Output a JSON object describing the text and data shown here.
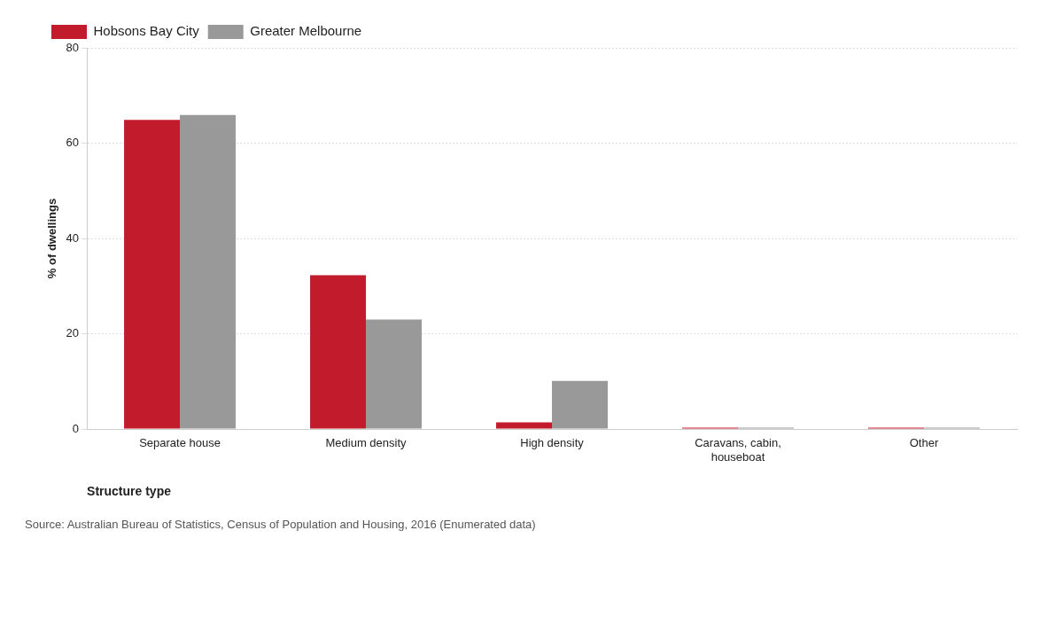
{
  "chart_data": {
    "type": "bar",
    "xlabel": "Structure type",
    "ylabel": "% of dwellings",
    "categories": [
      "Separate house",
      "Medium density",
      "High density",
      "Caravans, cabin, houseboat",
      "Other"
    ],
    "series": [
      {
        "name": "Hobsons Bay City",
        "color": "#c11b2c",
        "values": [
          64.9,
          32.3,
          1.4,
          0.3,
          0.3
        ]
      },
      {
        "name": "Greater Melbourne",
        "color": "#999999",
        "values": [
          65.9,
          23.0,
          10.1,
          0.3,
          0.3
        ]
      }
    ],
    "ylim": [
      0,
      80
    ],
    "yticks": [
      0,
      20,
      40,
      60,
      80
    ],
    "grid": "y",
    "legend": "top left",
    "annotations": [
      "Source: Australian Bureau of Statistics, Census of Population and Housing, 2016 (Enumerated data)"
    ]
  }
}
